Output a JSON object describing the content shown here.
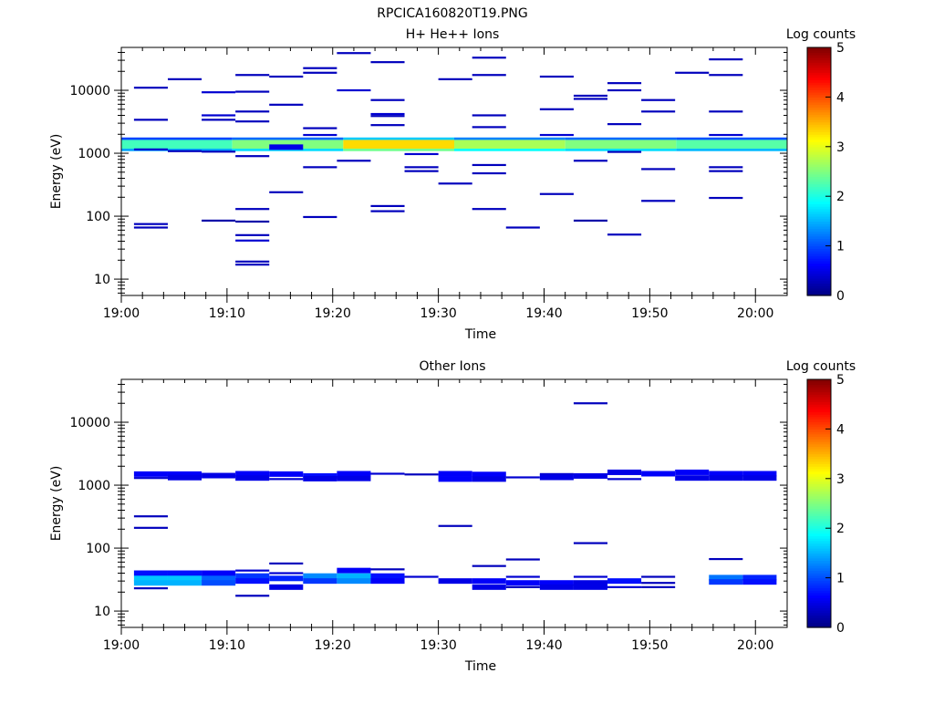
{
  "figure_title": "RPCICA160820T19.PNG",
  "chart_data": [
    {
      "type": "heatmap",
      "title": "H+ He++ Ions",
      "xlabel": "Time",
      "ylabel": "Energy (eV)",
      "x_ticks": [
        "19:00",
        "19:10",
        "19:20",
        "19:30",
        "19:40",
        "19:50",
        "20:00"
      ],
      "xlim_minutes": [
        0,
        63
      ],
      "y_ticks": [
        "10",
        "100",
        "1000",
        "10000"
      ],
      "y_scale": "log",
      "ylim": [
        5.5,
        48000
      ],
      "colorbar": {
        "label": "Log counts",
        "ticks": [
          "0",
          "1",
          "2",
          "3",
          "4",
          "5"
        ],
        "range": [
          0,
          5
        ],
        "colormap": "jet"
      },
      "band": {
        "e_low": 1080,
        "e_high": 1780,
        "levels": [
          1.6,
          1.9,
          2.7,
          2.1,
          1.9,
          1.7
        ]
      },
      "cells": [
        [
          1.2,
          11000,
          0.3
        ],
        [
          1.2,
          3400,
          0.3
        ],
        [
          1.2,
          75,
          0.3
        ],
        [
          1.2,
          66,
          0.3
        ],
        [
          1.2,
          1150,
          0.4
        ],
        [
          4.4,
          15000,
          0.3
        ],
        [
          4.4,
          1080,
          0.3
        ],
        [
          7.6,
          9300,
          0.4
        ],
        [
          7.6,
          4000,
          0.4
        ],
        [
          7.6,
          3400,
          0.3
        ],
        [
          7.6,
          1060,
          0.3
        ],
        [
          7.6,
          85,
          0.2
        ],
        [
          10.8,
          17500,
          0.3
        ],
        [
          10.8,
          9500,
          0.3
        ],
        [
          10.8,
          4600,
          0.3
        ],
        [
          10.8,
          3200,
          0.3
        ],
        [
          10.8,
          900,
          0.3
        ],
        [
          10.8,
          130,
          0.3
        ],
        [
          10.8,
          82,
          0.2
        ],
        [
          10.8,
          50,
          0.3
        ],
        [
          10.8,
          41,
          0.4
        ],
        [
          10.8,
          19,
          0.3
        ],
        [
          10.8,
          17,
          0.3
        ],
        [
          14.0,
          16500,
          0.3
        ],
        [
          14.0,
          5900,
          0.3
        ],
        [
          14.0,
          1250,
          0.5
        ],
        [
          14.0,
          240,
          0.3
        ],
        [
          17.2,
          22500,
          0.3
        ],
        [
          17.2,
          19000,
          0.3
        ],
        [
          17.2,
          2500,
          0.3
        ],
        [
          17.2,
          1950,
          0.4
        ],
        [
          17.2,
          600,
          0.3
        ],
        [
          17.2,
          97,
          0.3
        ],
        [
          20.4,
          39000,
          0.3
        ],
        [
          20.4,
          10000,
          0.4
        ],
        [
          20.4,
          760,
          0.3
        ],
        [
          23.6,
          28000,
          0.3
        ],
        [
          23.6,
          7000,
          0.3
        ],
        [
          23.6,
          4200,
          0.4
        ],
        [
          23.6,
          3900,
          0.3
        ],
        [
          23.6,
          2800,
          0.3
        ],
        [
          23.6,
          145,
          0.3
        ],
        [
          23.6,
          120,
          0.3
        ],
        [
          26.8,
          970,
          0.4
        ],
        [
          26.8,
          600,
          0.3
        ],
        [
          26.8,
          520,
          0.3
        ],
        [
          30.0,
          15000,
          0.3
        ],
        [
          30.0,
          330,
          0.3
        ],
        [
          33.2,
          33000,
          0.3
        ],
        [
          33.2,
          17500,
          0.3
        ],
        [
          33.2,
          4000,
          0.3
        ],
        [
          33.2,
          2600,
          0.3
        ],
        [
          33.2,
          650,
          0.3
        ],
        [
          33.2,
          480,
          0.3
        ],
        [
          33.2,
          130,
          0.3
        ],
        [
          36.4,
          66,
          0.3
        ],
        [
          39.6,
          16500,
          0.3
        ],
        [
          39.6,
          5000,
          0.3
        ],
        [
          39.6,
          1950,
          0.4
        ],
        [
          39.6,
          225,
          0.3
        ],
        [
          42.8,
          8200,
          0.3
        ],
        [
          42.8,
          7300,
          0.3
        ],
        [
          42.8,
          760,
          0.3
        ],
        [
          42.8,
          85,
          0.2
        ],
        [
          46.0,
          13000,
          0.3
        ],
        [
          46.0,
          10000,
          0.3
        ],
        [
          46.0,
          2900,
          0.3
        ],
        [
          46.0,
          1050,
          0.3
        ],
        [
          46.0,
          51,
          0.3
        ],
        [
          49.2,
          7000,
          0.3
        ],
        [
          49.2,
          4600,
          0.3
        ],
        [
          49.2,
          560,
          0.3
        ],
        [
          49.2,
          175,
          0.3
        ],
        [
          52.4,
          19000,
          0.3
        ],
        [
          55.6,
          31000,
          0.3
        ],
        [
          55.6,
          17500,
          0.3
        ],
        [
          55.6,
          4600,
          0.3
        ],
        [
          55.6,
          1950,
          0.4
        ],
        [
          55.6,
          600,
          0.3
        ],
        [
          55.6,
          520,
          0.3
        ],
        [
          55.6,
          195,
          0.3
        ]
      ]
    },
    {
      "type": "heatmap",
      "title": "Other Ions",
      "xlabel": "Time",
      "ylabel": "Energy (eV)",
      "x_ticks": [
        "19:00",
        "19:10",
        "19:20",
        "19:30",
        "19:40",
        "19:50",
        "20:00"
      ],
      "xlim_minutes": [
        0,
        63
      ],
      "y_ticks": [
        "10",
        "100",
        "1000",
        "10000"
      ],
      "y_scale": "log",
      "ylim": [
        5.5,
        48000
      ],
      "colorbar": {
        "label": "Log counts",
        "ticks": [
          "0",
          "1",
          "2",
          "3",
          "4",
          "5"
        ],
        "range": [
          0,
          5
        ],
        "colormap": "jet"
      },
      "band": null,
      "cells": [
        [
          1.2,
          1500,
          0.6
        ],
        [
          1.2,
          1300,
          0.4
        ],
        [
          1.2,
          320,
          0.3
        ],
        [
          1.2,
          210,
          0.3
        ],
        [
          1.2,
          40,
          0.7
        ],
        [
          1.2,
          33,
          1.6
        ],
        [
          1.2,
          28,
          1.5
        ],
        [
          1.2,
          23,
          0.3
        ],
        [
          4.4,
          1500,
          0.6
        ],
        [
          4.4,
          1320,
          0.5
        ],
        [
          4.4,
          40,
          0.7
        ],
        [
          4.4,
          33,
          1.6
        ],
        [
          4.4,
          28,
          1.5
        ],
        [
          7.6,
          1420,
          0.5
        ],
        [
          7.6,
          40,
          0.6
        ],
        [
          7.6,
          33,
          1.1
        ],
        [
          7.6,
          28,
          1.0
        ],
        [
          10.8,
          1520,
          0.6
        ],
        [
          10.8,
          1300,
          0.5
        ],
        [
          10.8,
          44,
          0.4
        ],
        [
          10.8,
          36,
          0.9
        ],
        [
          10.8,
          30,
          0.7
        ],
        [
          10.8,
          17.5,
          0.3
        ],
        [
          14.0,
          1500,
          0.6
        ],
        [
          14.0,
          1250,
          0.4
        ],
        [
          14.0,
          57,
          0.3
        ],
        [
          14.0,
          40,
          0.4
        ],
        [
          14.0,
          33,
          0.8
        ],
        [
          14.0,
          24,
          0.5
        ],
        [
          17.2,
          1400,
          0.7
        ],
        [
          17.2,
          1270,
          0.5
        ],
        [
          17.2,
          36,
          1.3
        ],
        [
          17.2,
          30,
          0.9
        ],
        [
          20.4,
          1520,
          0.6
        ],
        [
          20.4,
          1280,
          0.5
        ],
        [
          20.4,
          44,
          0.6
        ],
        [
          20.4,
          36,
          1.5
        ],
        [
          20.4,
          30,
          1.3
        ],
        [
          23.6,
          1520,
          0.4
        ],
        [
          23.6,
          46,
          0.3
        ],
        [
          23.6,
          36,
          0.7
        ],
        [
          23.6,
          30,
          0.6
        ],
        [
          26.8,
          1480,
          0.3
        ],
        [
          26.8,
          35,
          0.4
        ],
        [
          30.0,
          1520,
          0.6
        ],
        [
          30.0,
          1250,
          0.6
        ],
        [
          30.0,
          225,
          0.3
        ],
        [
          30.0,
          30,
          0.5
        ],
        [
          33.2,
          1480,
          0.6
        ],
        [
          33.2,
          1250,
          0.5
        ],
        [
          33.2,
          52,
          0.3
        ],
        [
          33.2,
          30,
          0.6
        ],
        [
          33.2,
          24,
          0.5
        ],
        [
          36.4,
          1330,
          0.4
        ],
        [
          36.4,
          66,
          0.3
        ],
        [
          36.4,
          35,
          0.4
        ],
        [
          36.4,
          28,
          0.6
        ],
        [
          36.4,
          24,
          0.3
        ],
        [
          39.6,
          1500,
          0.4
        ],
        [
          39.6,
          1330,
          0.5
        ],
        [
          39.6,
          28,
          0.6
        ],
        [
          39.6,
          24,
          0.5
        ],
        [
          42.8,
          20000,
          0.3
        ],
        [
          42.8,
          1400,
          0.5
        ],
        [
          42.8,
          120,
          0.3
        ],
        [
          42.8,
          35,
          0.4
        ],
        [
          42.8,
          28,
          0.5
        ],
        [
          42.8,
          24,
          0.5
        ],
        [
          46.0,
          1600,
          0.5
        ],
        [
          46.0,
          1250,
          0.4
        ],
        [
          46.0,
          30,
          0.7
        ],
        [
          46.0,
          24,
          0.4
        ],
        [
          49.2,
          1520,
          0.6
        ],
        [
          49.2,
          35,
          0.3
        ],
        [
          49.2,
          28,
          0.3
        ],
        [
          49.2,
          24,
          0.3
        ],
        [
          52.4,
          1600,
          0.6
        ],
        [
          52.4,
          1300,
          0.5
        ],
        [
          55.6,
          1520,
          0.6
        ],
        [
          55.6,
          1300,
          0.5
        ],
        [
          55.6,
          67,
          0.3
        ],
        [
          55.6,
          34,
          1.2
        ],
        [
          55.6,
          29,
          0.9
        ],
        [
          58.8,
          1520,
          0.6
        ],
        [
          58.8,
          1300,
          0.5
        ],
        [
          58.8,
          34,
          0.8
        ],
        [
          58.8,
          29,
          0.7
        ]
      ]
    }
  ]
}
